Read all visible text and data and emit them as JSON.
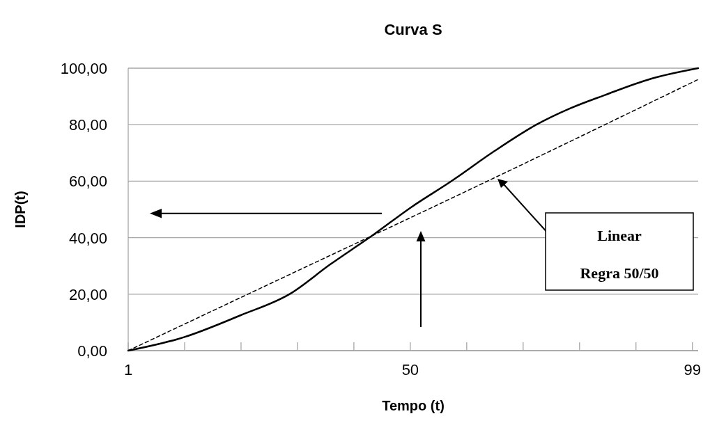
{
  "chart_data": {
    "type": "line",
    "title": "Curva S",
    "xlabel": "Tempo (t)",
    "ylabel": "IDP(t)",
    "xlim": [
      1,
      100
    ],
    "xticks": [
      1,
      {
        "value": 10.8,
        "label": null
      },
      {
        "value": 20.6,
        "label": null
      },
      {
        "value": 30.4,
        "label": null
      },
      {
        "value": 40.2,
        "label": null
      },
      50,
      {
        "value": 59.8,
        "label": null
      },
      {
        "value": 69.6,
        "label": null
      },
      {
        "value": 79.4,
        "label": null
      },
      {
        "value": 89.2,
        "label": null
      },
      99
    ],
    "ylim": [
      0,
      100
    ],
    "yticks": [
      {
        "value": 0,
        "label": "0,00"
      },
      {
        "value": 20,
        "label": "20,00"
      },
      {
        "value": 40,
        "label": "40,00"
      },
      {
        "value": 60,
        "label": "60,00"
      },
      {
        "value": 80,
        "label": "80,00"
      },
      {
        "value": 100,
        "label": "100,00"
      }
    ],
    "grid": "y",
    "series": [
      {
        "color": "#000000",
        "line_style": "solid",
        "x": [
          1,
          10.6,
          20.5,
          29.1,
          36,
          43.7,
          50.1,
          57.2,
          64.5,
          71.9,
          77.8,
          83.8,
          91.7,
          100
        ],
        "values": [
          0,
          4.7,
          12.5,
          20.1,
          30.4,
          41.2,
          50.7,
          60.1,
          70.5,
          80,
          85.8,
          90.5,
          96.2,
          100
        ]
      },
      {
        "color": "#000000",
        "line_style": "dashed",
        "x": [
          1,
          21.9,
          63.5,
          100
        ],
        "values": [
          0,
          20.1,
          60.1,
          96
        ]
      }
    ],
    "annotations": [
      "Linear",
      "Regra 50/50"
    ]
  }
}
